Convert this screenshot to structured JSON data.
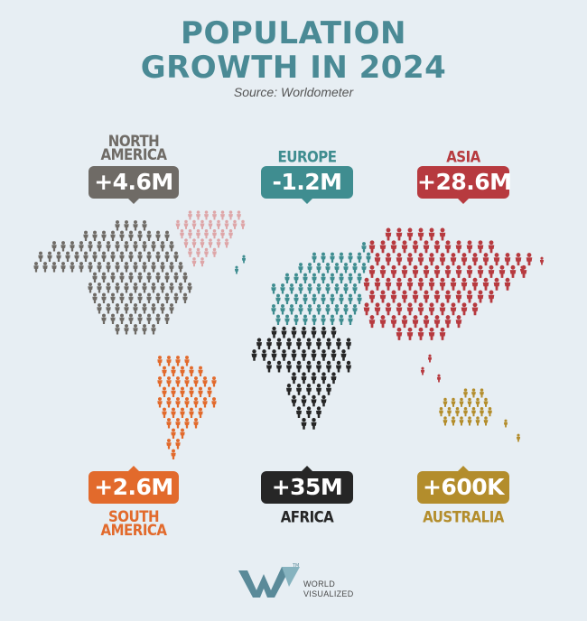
{
  "title_line1": "POPULATION",
  "title_line2": "GROWTH IN 2024",
  "source": "Source: Worldometer",
  "regions": {
    "north_america": {
      "name": "NORTH AMERICA",
      "value": "+4.6M",
      "color": "#6f6b66"
    },
    "europe": {
      "name": "EUROPE",
      "value": "-1.2M",
      "color": "#3f8d90"
    },
    "asia": {
      "name": "ASIA",
      "value": "+28.6M",
      "color": "#b73a3f"
    },
    "south_america": {
      "name": "SOUTH AMERICA",
      "value": "+2.6M",
      "color": "#e26a2c"
    },
    "africa": {
      "name": "AFRICA",
      "value": "+35M",
      "color": "#262626"
    },
    "australia": {
      "name": "AUSTRALIA",
      "value": "+600K",
      "color": "#b38d2c"
    }
  },
  "greenland_color": "#dea6a8",
  "logo": {
    "line1": "WORLD",
    "line2": "VISUALIZED",
    "mark_color": "#5a8a99"
  }
}
